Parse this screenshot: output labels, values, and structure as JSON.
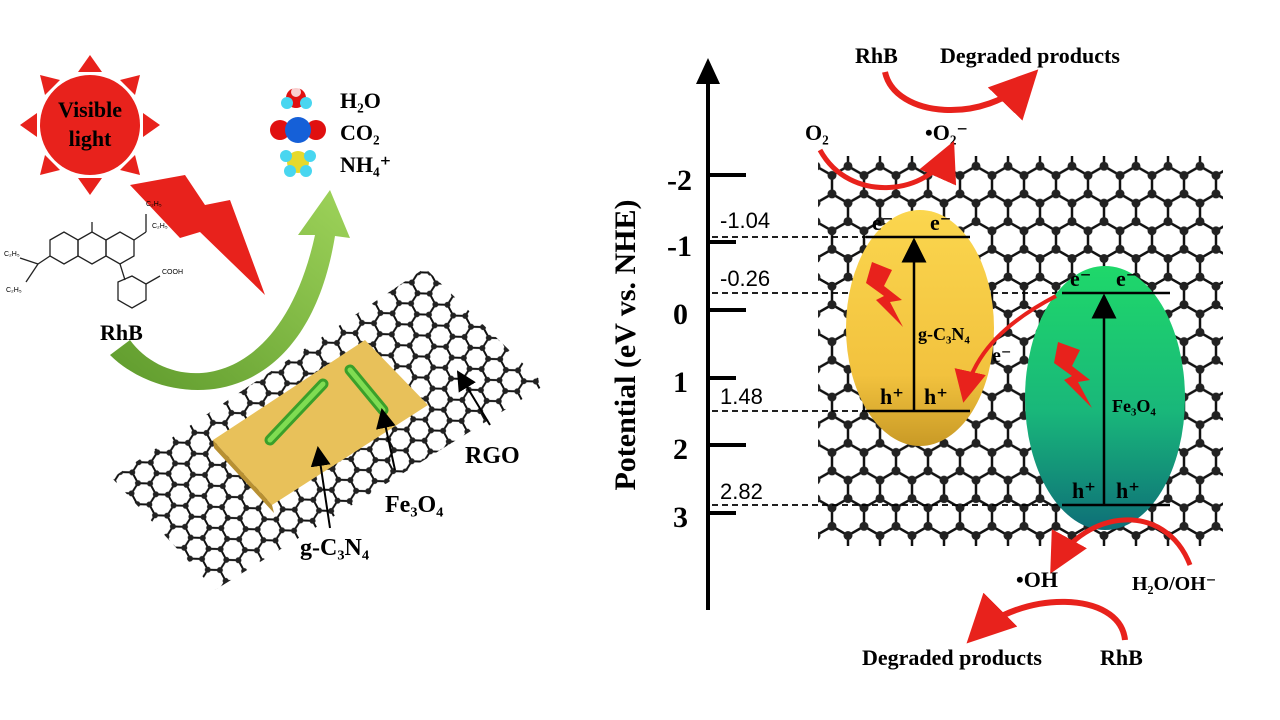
{
  "left_panel": {
    "sun_label_line1": "Visible",
    "sun_label_line2": "light",
    "rhb_label": "RhB",
    "rgo_label": "RGO",
    "fe3o4_label": "Fe₃O₄",
    "gc3n4_label": "g-C₃N₄",
    "products": [
      "H₂O",
      "CO₂",
      "NH₄⁺"
    ],
    "rhb_substituents": [
      "C₂H₅",
      "C₂H₅",
      "C₂H₅",
      "C₂H₅",
      "COOH"
    ]
  },
  "right_panel": {
    "axis_title": "Potential (eV vs. NHE)",
    "ticks": [
      "-2",
      "-1",
      "0",
      "1",
      "2",
      "3"
    ],
    "levels": [
      "-1.04",
      "-0.26",
      "1.48",
      "2.82"
    ],
    "top_rhb": "RhB",
    "top_degraded": "Degraded products",
    "o2": "O₂",
    "superoxide": "•O₂⁻",
    "gc3n4": "g-C₃N₄",
    "fe3o4": "Fe₃O₄",
    "electron": "e⁻",
    "hole": "h⁺",
    "hydroxyl": "•OH",
    "water": "H₂O/OH⁻",
    "bottom_degraded": "Degraded products",
    "bottom_rhb": "RhB"
  },
  "colors": {
    "sun": "#e8221c",
    "arrow_red": "#e8221c",
    "green_arrow": "#8cc63f",
    "gc3n4_fill": "#f7c842",
    "fe3o4_fill": "#1fc46b",
    "sheet_fill": "#e8c15a"
  }
}
